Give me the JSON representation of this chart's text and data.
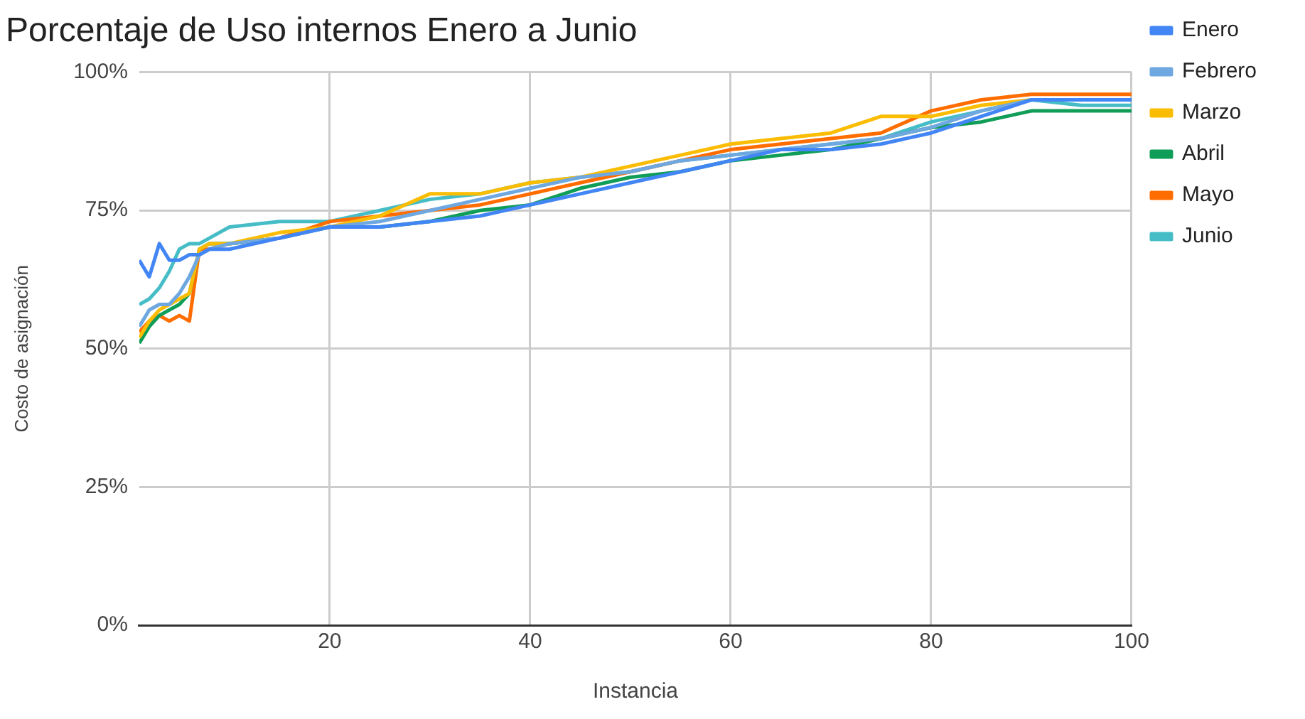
{
  "chart_data": {
    "type": "line",
    "title": "Porcentaje de Uso internos Enero a Junio",
    "xlabel": "Instancia",
    "ylabel": "Costo de asignación",
    "x": [
      1,
      2,
      3,
      4,
      5,
      6,
      7,
      8,
      10,
      15,
      20,
      25,
      30,
      35,
      40,
      45,
      50,
      55,
      60,
      65,
      70,
      75,
      80,
      85,
      90,
      95,
      100
    ],
    "series": [
      {
        "name": "Enero",
        "color": "#4285f4",
        "values": [
          66,
          63,
          69,
          66,
          66,
          67,
          67,
          68,
          68,
          70,
          72,
          72,
          73,
          74,
          76,
          78,
          80,
          82,
          84,
          86,
          86,
          87,
          89,
          92,
          95,
          95,
          95
        ]
      },
      {
        "name": "Febrero",
        "color": "#6fa8e0",
        "values": [
          54,
          57,
          58,
          58,
          60,
          63,
          67,
          68,
          69,
          70,
          72,
          73,
          75,
          77,
          79,
          81,
          82,
          84,
          85,
          86,
          87,
          88,
          90,
          93,
          95,
          95,
          95
        ]
      },
      {
        "name": "Marzo",
        "color": "#fbbc04",
        "values": [
          52,
          55,
          57,
          58,
          59,
          60,
          68,
          69,
          69,
          71,
          72,
          74,
          78,
          78,
          80,
          81,
          83,
          85,
          87,
          88,
          89,
          92,
          92,
          94,
          95,
          95,
          95
        ]
      },
      {
        "name": "Abril",
        "color": "#0f9d58",
        "values": [
          51,
          54,
          56,
          57,
          58,
          60,
          68,
          69,
          69,
          70,
          72,
          72,
          73,
          75,
          76,
          79,
          81,
          82,
          84,
          85,
          86,
          88,
          90,
          91,
          93,
          93,
          93
        ]
      },
      {
        "name": "Mayo",
        "color": "#ff6d00",
        "values": [
          53,
          55,
          56,
          55,
          56,
          55,
          68,
          68,
          69,
          70,
          73,
          74,
          75,
          76,
          78,
          80,
          82,
          84,
          86,
          87,
          88,
          89,
          93,
          95,
          96,
          96,
          96
        ]
      },
      {
        "name": "Junio",
        "color": "#46bdc6",
        "values": [
          58,
          59,
          61,
          64,
          68,
          69,
          69,
          70,
          72,
          73,
          73,
          75,
          77,
          78,
          80,
          81,
          82,
          84,
          85,
          86,
          87,
          88,
          91,
          93,
          95,
          94,
          94
        ]
      }
    ],
    "xlim": [
      1,
      100
    ],
    "xticks": [
      20,
      40,
      60,
      80,
      100
    ],
    "ylim": [
      0,
      100
    ],
    "yticks": [
      {
        "value": 0,
        "label": "0%"
      },
      {
        "value": 25,
        "label": "25%"
      },
      {
        "value": 50,
        "label": "50%"
      },
      {
        "value": 75,
        "label": "75%"
      },
      {
        "value": 100,
        "label": "100%"
      }
    ],
    "grid": true,
    "legend": "right",
    "marker": "none",
    "line_style": "solid"
  }
}
